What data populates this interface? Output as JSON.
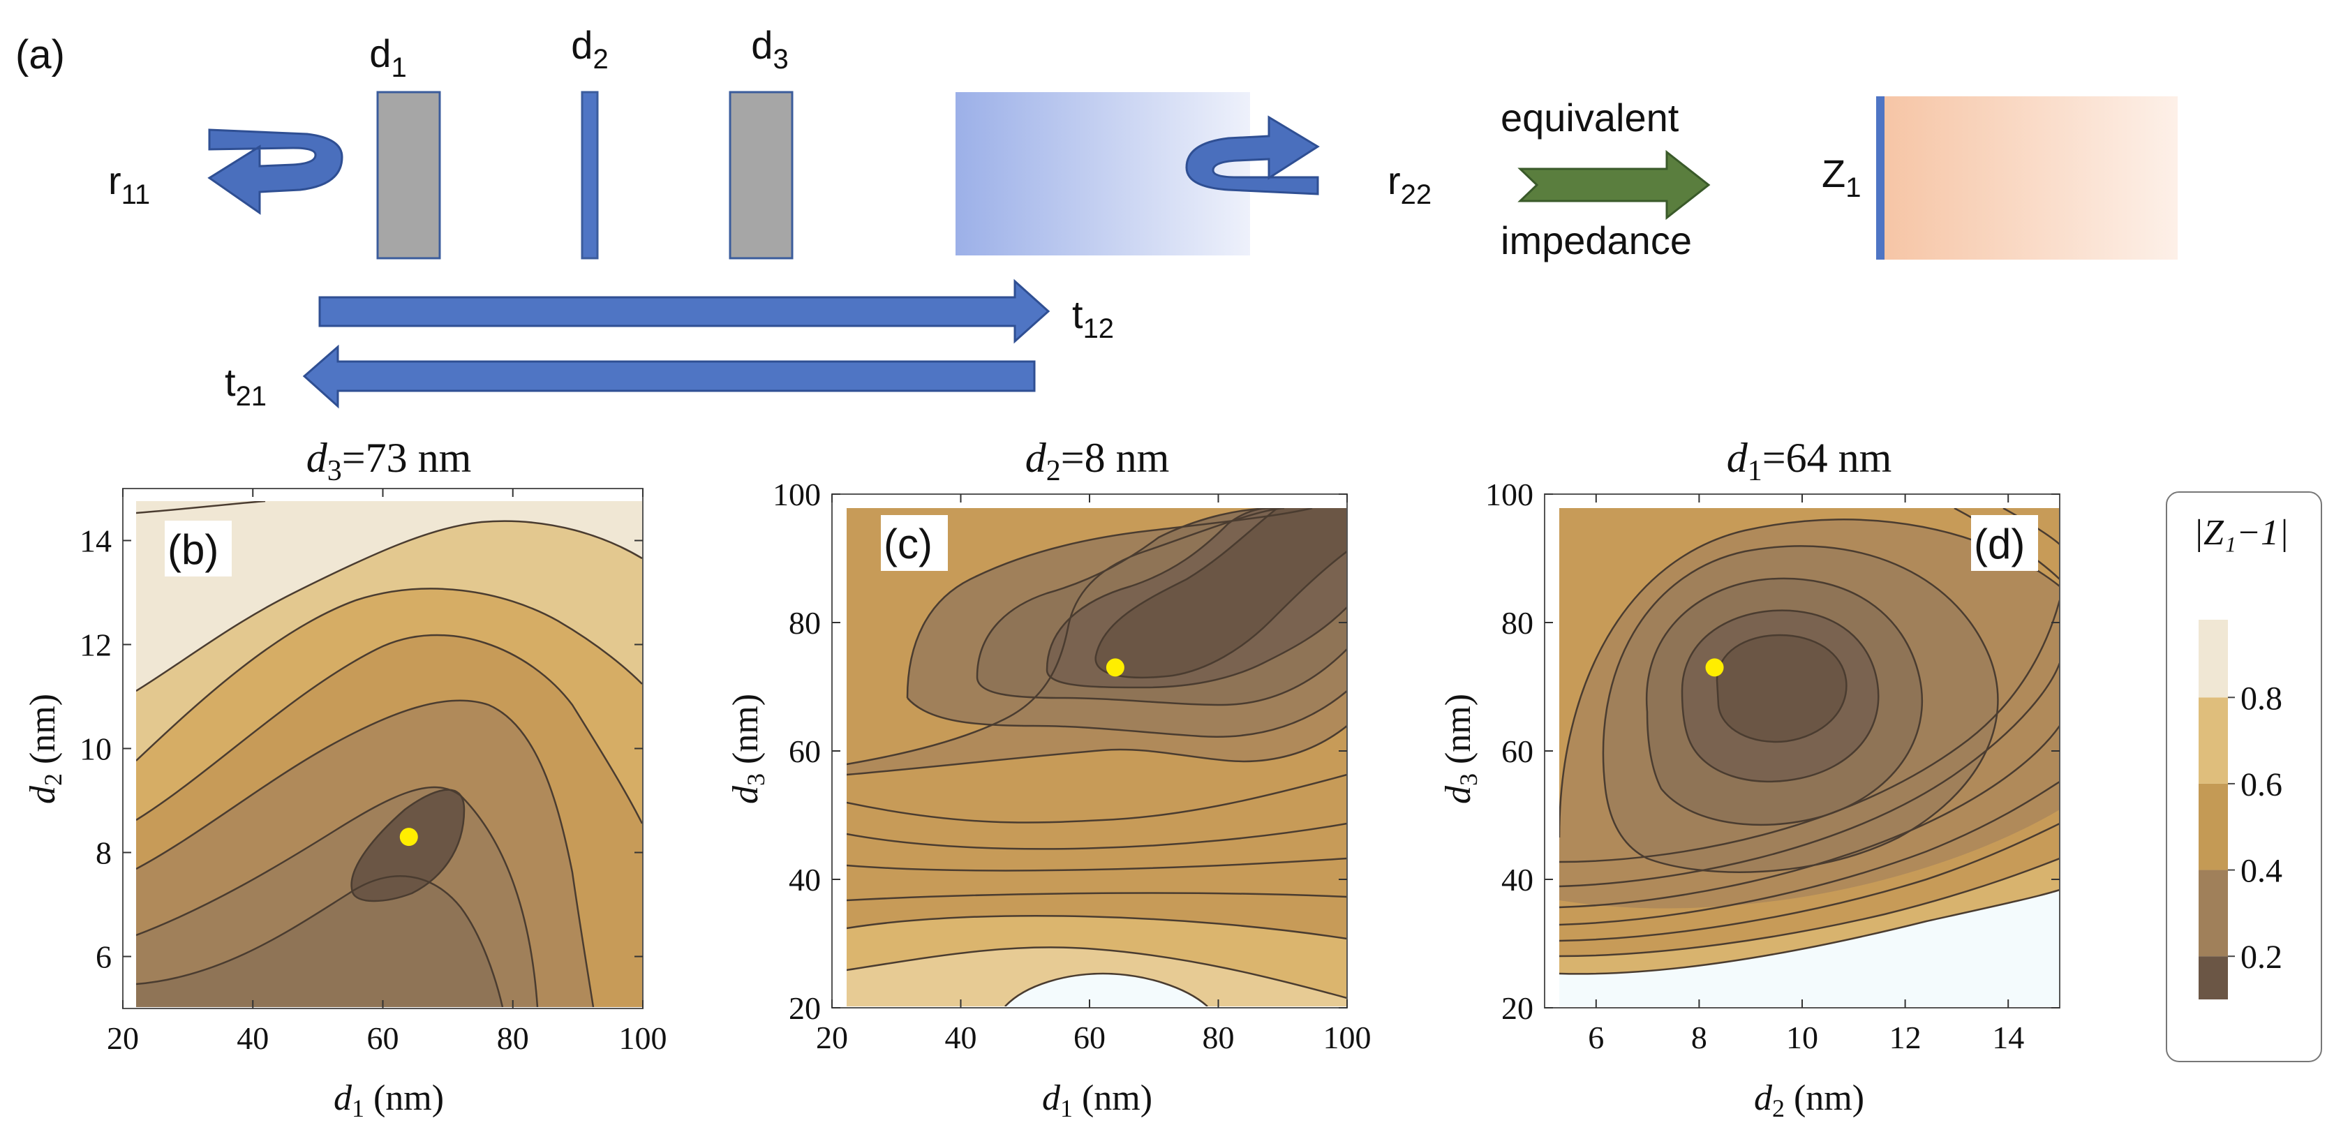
{
  "figure_label": "(a)",
  "schematic": {
    "layers": [
      {
        "base": "d",
        "sub": "1"
      },
      {
        "base": "d",
        "sub": "2"
      },
      {
        "base": "d",
        "sub": "3"
      }
    ],
    "r11": {
      "base": "r",
      "sub": "11"
    },
    "r22": {
      "base": "r",
      "sub": "22"
    },
    "t12": {
      "base": "t",
      "sub": "12"
    },
    "t21": {
      "base": "t",
      "sub": "21"
    },
    "equivalent_line1": "equivalent",
    "equivalent_line2": "impedance",
    "z1": {
      "base": "Z",
      "sub": "1"
    },
    "colors": {
      "layer_gray": "#a6a6a6",
      "layer_blue": "#4f75c4",
      "arrow_blue": "#4f75c4",
      "arrow_green": "#5a7e3e",
      "substrate_blue": "#9cb0e8",
      "substrate_peach": "#f6c6a8"
    }
  },
  "colorbar": {
    "title": "|Z₁−1|",
    "ticks": [
      "0.2",
      "0.4",
      "0.6",
      "0.8"
    ],
    "tick_values": [
      0.2,
      0.4,
      0.6,
      0.8
    ],
    "colors": [
      "#6b5645",
      "#a0805a",
      "#c49a55",
      "#dfbe7c",
      "#f0e7d4"
    ]
  },
  "chart_data": [
    {
      "type": "contour",
      "panel": "(b)",
      "title": {
        "var": "d",
        "sub": "3",
        "rest": "=73 nm"
      },
      "xlabel": {
        "var": "d",
        "sub": "1",
        "rest": " (nm)"
      },
      "ylabel": {
        "var": "d",
        "sub": "2",
        "rest": " (nm)"
      },
      "xlim": [
        20,
        100
      ],
      "ylim": [
        5,
        15
      ],
      "xticks": [
        "20",
        "40",
        "60",
        "80",
        "100"
      ],
      "yticks": [
        "6",
        "8",
        "10",
        "12",
        "14"
      ],
      "optimum": {
        "x": 64,
        "y": 8.3
      },
      "max_region": {
        "corner": "top-left",
        "value_above": 0.8
      }
    },
    {
      "type": "contour",
      "panel": "(c)",
      "title": {
        "var": "d",
        "sub": "2",
        "rest": "=8 nm"
      },
      "xlabel": {
        "var": "d",
        "sub": "1",
        "rest": " (nm)"
      },
      "ylabel": {
        "var": "d",
        "sub": "3",
        "rest": " (nm)"
      },
      "xlim": [
        20,
        100
      ],
      "ylim": [
        20,
        100
      ],
      "xticks": [
        "20",
        "40",
        "60",
        "80",
        "100"
      ],
      "yticks": [
        "20",
        "40",
        "60",
        "80",
        "100"
      ],
      "optimum": {
        "x": 64,
        "y": 73
      },
      "max_region": {
        "corner": "bottom-center",
        "value_above": 1.0
      }
    },
    {
      "type": "contour",
      "panel": "(d)",
      "title": {
        "var": "d",
        "sub": "1",
        "rest": "=64 nm"
      },
      "xlabel": {
        "var": "d",
        "sub": "2",
        "rest": " (nm)"
      },
      "ylabel": {
        "var": "d",
        "sub": "3",
        "rest": " (nm)"
      },
      "xlim": [
        5,
        15
      ],
      "ylim": [
        20,
        100
      ],
      "xticks": [
        "6",
        "8",
        "10",
        "12",
        "14"
      ],
      "yticks": [
        "20",
        "40",
        "60",
        "80",
        "100"
      ],
      "optimum": {
        "x": 8.3,
        "y": 73
      },
      "max_region": {
        "corner": "bottom",
        "value_above": 1.0
      }
    }
  ]
}
